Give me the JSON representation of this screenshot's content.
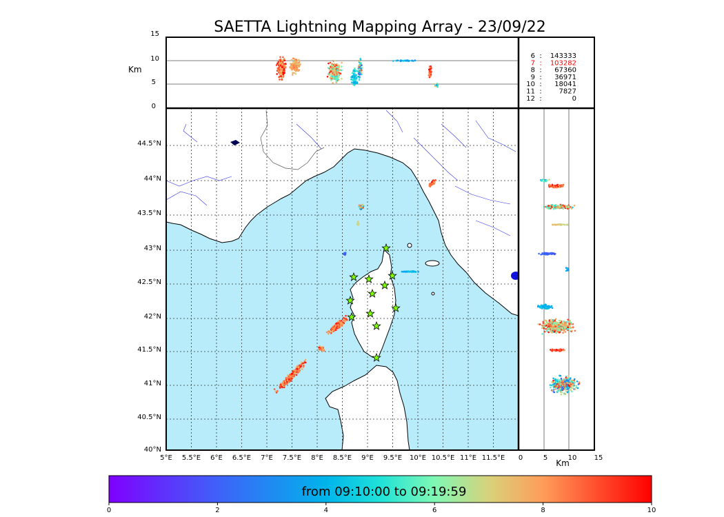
{
  "title": "SAETTA Lightning Mapping Array - 23/09/22",
  "top_panel": {
    "ylabel": "Km",
    "yticks": [
      "0",
      "5",
      "10",
      "15"
    ]
  },
  "map": {
    "lon_labels": [
      "5°E",
      "5.5°E",
      "6°E",
      "6.5°E",
      "7°E",
      "7.5°E",
      "8°E",
      "8.5°E",
      "9°E",
      "9.5°E",
      "10°E",
      "10.5°E",
      "11°E",
      "11.5°E"
    ],
    "lat_labels": [
      "40°N",
      "40.5°N",
      "41°N",
      "41.5°N",
      "42°N",
      "42.5°N",
      "43°N",
      "43.5°N",
      "44°N",
      "44.5°N"
    ],
    "sea_color": "#b8ecfa",
    "land_color": "#ffffff",
    "station_color": "#7fff00"
  },
  "side_panel": {
    "xlabel": "Km",
    "xticks": [
      "0",
      "5",
      "10",
      "15"
    ]
  },
  "stats": [
    {
      "label": "6",
      "sep": ":",
      "value": "143333",
      "color": "#000000"
    },
    {
      "label": "7",
      "sep": ":",
      "value": "103282",
      "color": "#ff0000"
    },
    {
      "label": "8",
      "sep": ":",
      "value": "67360",
      "color": "#000000"
    },
    {
      "label": "9",
      "sep": ":",
      "value": "36971",
      "color": "#000000"
    },
    {
      "label": "10",
      "sep": ":",
      "value": "18041",
      "color": "#000000"
    },
    {
      "label": "11",
      "sep": ":",
      "value": "7827",
      "color": "#000000"
    },
    {
      "label": "12",
      "sep": ":",
      "value": "0",
      "color": "#000000"
    }
  ],
  "colorbar": {
    "label": "from 09:10:00 to 09:19:59",
    "ticks": [
      "0",
      "2",
      "4",
      "6",
      "8",
      "10"
    ],
    "colors": [
      "#7f00ff",
      "#1996f3",
      "#4df3ce",
      "#b2f396",
      "#ff964f",
      "#ff0000"
    ]
  }
}
